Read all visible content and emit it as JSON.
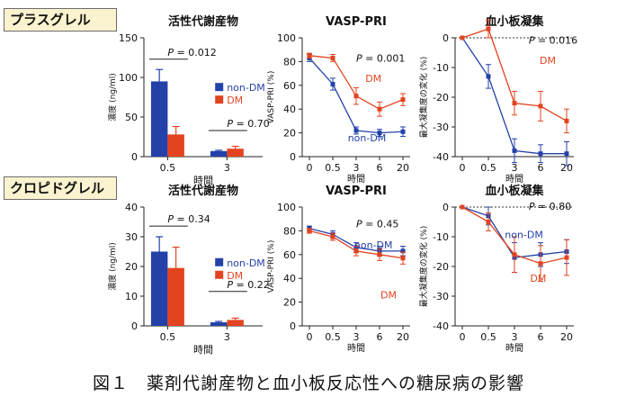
{
  "figure": {
    "caption": "図１　薬剤代謝産物と血小板反応性への糖尿病の影響",
    "drugs": [
      "プラスグレル",
      "クロピドグレル"
    ],
    "colors": {
      "non_dm": "#2341a8",
      "dm": "#e3431f"
    }
  },
  "chart_data": [
    {
      "type": "bar",
      "panel": "prasugrel-metabolite",
      "title": "活性代謝産物",
      "ylabel": "濃度 (ng/ml)",
      "xlabel": "時間",
      "categories": [
        "0.5",
        "3"
      ],
      "ylim": [
        0,
        150
      ],
      "yticks": [
        0,
        50,
        100,
        150
      ],
      "series": [
        {
          "name": "non-DM",
          "values": [
            95,
            7
          ],
          "errors": [
            15,
            1
          ]
        },
        {
          "name": "DM",
          "values": [
            28,
            10
          ],
          "errors": [
            10,
            3
          ]
        }
      ],
      "annotations": [
        "P = 0.012",
        "P = 0.70"
      ]
    },
    {
      "type": "line",
      "panel": "prasugrel-vasp",
      "title": "VASP-PRI",
      "ylabel": "VASP-PRI (%)",
      "xlabel": "時間",
      "x": [
        "0",
        "0.5",
        "3",
        "6",
        "20"
      ],
      "ylim": [
        0,
        100
      ],
      "yticks": [
        0,
        20,
        40,
        60,
        80,
        100
      ],
      "series": [
        {
          "name": "non-DM",
          "values": [
            83,
            61,
            22,
            20,
            21
          ],
          "errors": [
            3,
            5,
            3,
            3,
            4
          ]
        },
        {
          "name": "DM",
          "values": [
            85,
            83,
            51,
            40,
            48
          ],
          "errors": [
            2,
            3,
            7,
            6,
            5
          ]
        }
      ],
      "annotations": [
        "P = 0.001"
      ]
    },
    {
      "type": "line",
      "panel": "prasugrel-aggregation",
      "title": "血小板凝集",
      "ylabel": "最大凝集度の変化 (%)",
      "xlabel": "時間",
      "x": [
        "0",
        "0.5",
        "3",
        "6",
        "20"
      ],
      "ylim": [
        -40,
        0
      ],
      "yticks": [
        -40,
        -30,
        -20,
        -10,
        0
      ],
      "series": [
        {
          "name": "non-DM",
          "values": [
            0,
            -13,
            -38,
            -39,
            -39
          ],
          "errors": [
            0,
            4,
            4,
            3,
            4
          ]
        },
        {
          "name": "DM",
          "values": [
            0,
            3,
            -22,
            -23,
            -28
          ],
          "errors": [
            0,
            3,
            4,
            5,
            4
          ]
        }
      ],
      "annotations": [
        "P = 0.016"
      ]
    },
    {
      "type": "bar",
      "panel": "clopidogrel-metabolite",
      "title": "活性代謝産物",
      "ylabel": "濃度 (ng/ml)",
      "xlabel": "時間",
      "categories": [
        "0.5",
        "3"
      ],
      "ylim": [
        0,
        40
      ],
      "yticks": [
        0,
        10,
        20,
        30,
        40
      ],
      "series": [
        {
          "name": "non-DM",
          "values": [
            25,
            1.2
          ],
          "errors": [
            5,
            0.3
          ]
        },
        {
          "name": "DM",
          "values": [
            19.5,
            2
          ],
          "errors": [
            7,
            0.6
          ]
        }
      ],
      "annotations": [
        "P = 0.34",
        "P = 0.22"
      ]
    },
    {
      "type": "line",
      "panel": "clopidogrel-vasp",
      "title": "VASP-PRI",
      "ylabel": "VASP-PRI (%)",
      "xlabel": "時間",
      "x": [
        "0",
        "0.5",
        "3",
        "6",
        "20"
      ],
      "ylim": [
        0,
        100
      ],
      "yticks": [
        0,
        20,
        40,
        60,
        80,
        100
      ],
      "series": [
        {
          "name": "non-DM",
          "values": [
            82,
            77,
            66,
            63,
            63
          ],
          "errors": [
            2,
            3,
            4,
            4,
            4
          ]
        },
        {
          "name": "DM",
          "values": [
            80,
            75,
            63,
            60,
            57
          ],
          "errors": [
            2,
            3,
            4,
            5,
            5
          ]
        }
      ],
      "annotations": [
        "P = 0.45"
      ]
    },
    {
      "type": "line",
      "panel": "clopidogrel-aggregation",
      "title": "血小板凝集",
      "ylabel": "最大凝集度の変化 (%)",
      "xlabel": "時間",
      "x": [
        "0",
        "0.5",
        "3",
        "6",
        "20"
      ],
      "ylim": [
        -40,
        0
      ],
      "yticks": [
        -40,
        -30,
        -20,
        -10,
        0
      ],
      "series": [
        {
          "name": "non-DM",
          "values": [
            0,
            -3,
            -17,
            -16,
            -15
          ],
          "errors": [
            0,
            3,
            5,
            4,
            4
          ]
        },
        {
          "name": "DM",
          "values": [
            0,
            -5,
            -16,
            -19,
            -17
          ],
          "errors": [
            0,
            3,
            6,
            6,
            6
          ]
        }
      ],
      "annotations": [
        "P = 0.80"
      ]
    }
  ]
}
